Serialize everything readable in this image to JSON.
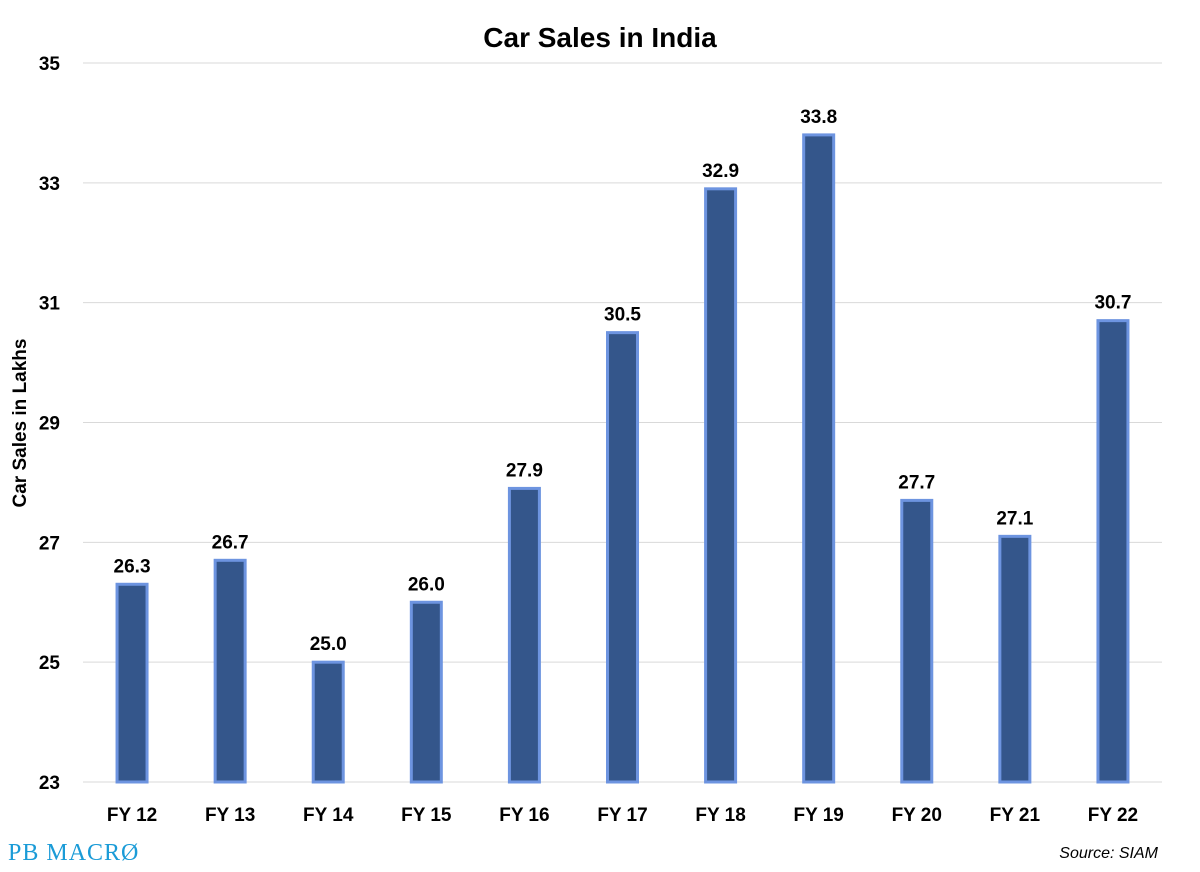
{
  "chart_data": {
    "type": "bar",
    "title": "Car Sales in India",
    "xlabel": "",
    "ylabel": "Car Sales in Lakhs",
    "categories": [
      "FY 12",
      "FY 13",
      "FY 14",
      "FY 15",
      "FY 16",
      "FY 17",
      "FY 18",
      "FY 19",
      "FY 20",
      "FY 21",
      "FY 22"
    ],
    "values": [
      26.3,
      26.7,
      25.0,
      26.0,
      27.9,
      30.5,
      32.9,
      33.8,
      27.7,
      27.1,
      30.7
    ],
    "value_labels": [
      "26.3",
      "26.7",
      "25.0",
      "26.0",
      "27.9",
      "30.5",
      "32.9",
      "33.8",
      "27.7",
      "27.1",
      "30.7"
    ],
    "ylim": [
      23,
      35
    ],
    "yticks": [
      "23",
      "25",
      "27",
      "29",
      "31",
      "33",
      "35"
    ],
    "grid": true,
    "legend": "none",
    "bar_color": "#34568b",
    "bar_outline_color": "#6d94e0"
  },
  "footer": {
    "logo_text": "PB MACRØ",
    "logo_color": "#1a9bd7",
    "source": "Source: SIAM"
  }
}
